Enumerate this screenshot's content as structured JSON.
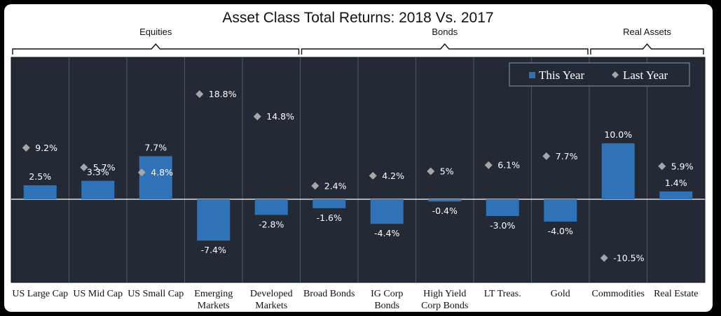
{
  "chart_data": {
    "type": "bar",
    "title": "Asset Class Total Returns: 2018 Vs. 2017",
    "groups": [
      {
        "label": "Equities",
        "first": 0,
        "last": 4
      },
      {
        "label": "Bonds",
        "first": 5,
        "last": 9
      },
      {
        "label": "Real Assets",
        "first": 10,
        "last": 11
      }
    ],
    "categories": [
      [
        "US Large Cap"
      ],
      [
        "US Mid Cap"
      ],
      [
        "US Small Cap"
      ],
      [
        "Emerging",
        "Markets"
      ],
      [
        "Developed",
        "Markets"
      ],
      [
        "Broad Bonds"
      ],
      [
        "IG Corp",
        "Bonds"
      ],
      [
        "High Yield",
        "Corp Bonds"
      ],
      [
        "LT Treas."
      ],
      [
        "Gold"
      ],
      [
        "Commodities"
      ],
      [
        "Real Estate"
      ]
    ],
    "series": [
      {
        "name": "This Year",
        "marker": "bar",
        "color": "#2f72b8",
        "values": [
          2.5,
          3.3,
          7.7,
          -7.4,
          -2.8,
          -1.6,
          -4.4,
          -0.4,
          -3.0,
          -4.0,
          10.0,
          1.4
        ],
        "labels": [
          "2.5%",
          "3.3%",
          "7.7%",
          "-7.4%",
          "-2.8%",
          "-1.6%",
          "-4.4%",
          "-0.4%",
          "-3.0%",
          "-4.0%",
          "10.0%",
          "1.4%"
        ]
      },
      {
        "name": "Last Year",
        "marker": "diamond",
        "color": "#a6a6a6",
        "values": [
          9.2,
          5.7,
          4.8,
          18.8,
          14.8,
          2.4,
          4.2,
          5.0,
          6.1,
          7.7,
          -10.5,
          5.9
        ],
        "labels": [
          "9.2%",
          "5.7%",
          "4.8%",
          "18.8%",
          "14.8%",
          "2.4%",
          "4.2%",
          "5%",
          "6.1%",
          "7.7%",
          "-10.5%",
          "5.9%"
        ]
      }
    ],
    "ylim": [
      -12,
      20
    ],
    "xlabel": "",
    "ylabel": "",
    "grid": "vertical separators",
    "legend": "top-right"
  },
  "colors": {
    "plot_background": "#232a36",
    "separator": "#4a5868",
    "zero_line": "#ffffff"
  }
}
